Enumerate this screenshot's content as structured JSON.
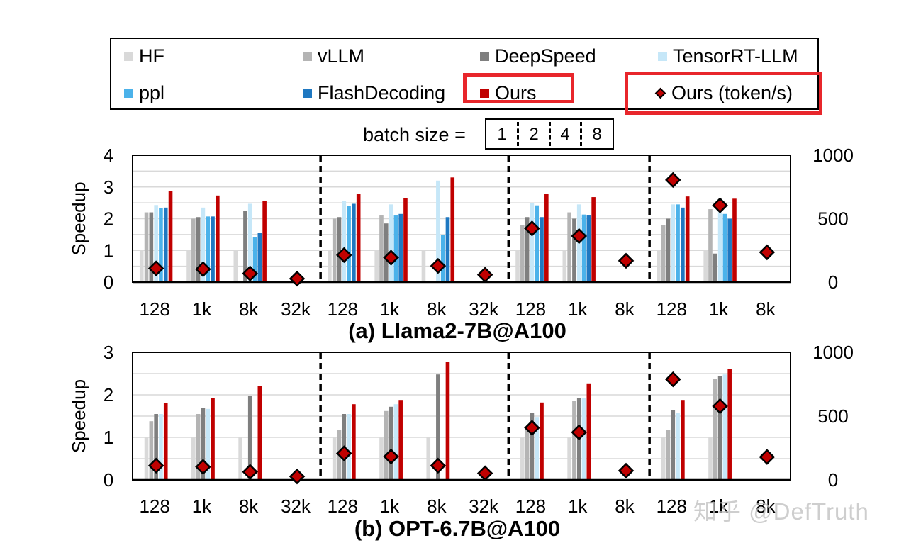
{
  "legend": {
    "items": [
      {
        "label": "HF",
        "color": "#d9d9d9",
        "kind": "bar"
      },
      {
        "label": "vLLM",
        "color": "#b4b4b4",
        "kind": "bar"
      },
      {
        "label": "DeepSpeed",
        "color": "#7f7f7f",
        "kind": "bar"
      },
      {
        "label": "TensorRT-LLM",
        "color": "#c6e7f8",
        "kind": "bar"
      },
      {
        "label": "ppl",
        "color": "#4bb2ea",
        "kind": "bar"
      },
      {
        "label": "FlashDecoding",
        "color": "#1f78c1",
        "kind": "bar"
      },
      {
        "label": "Ours",
        "color": "#c00000",
        "kind": "bar"
      },
      {
        "label": "Ours (token/s)",
        "color": "#c00000",
        "kind": "marker"
      }
    ]
  },
  "batch_size": {
    "label": "batch size =",
    "values": [
      "1",
      "2",
      "4",
      "8"
    ]
  },
  "chart_data": [
    {
      "type": "bar",
      "title": "(a) Llama2-7B@A100",
      "ylabel": "Speedup",
      "ylim": [
        0,
        4
      ],
      "yticks": [
        "0",
        "1",
        "2",
        "3",
        "4"
      ],
      "y2lim": [
        0,
        1000
      ],
      "y2ticks": [
        "0",
        "500",
        "1000"
      ],
      "categories": [
        "128",
        "1k",
        "8k",
        "32k",
        "128",
        "1k",
        "8k",
        "32k",
        "128",
        "1k",
        "8k",
        "128",
        "1k",
        "8k"
      ],
      "groups": [
        4,
        4,
        3,
        3
      ],
      "series": [
        {
          "name": "HF",
          "values": [
            1,
            1,
            1,
            null,
            1,
            1,
            1,
            null,
            1,
            1,
            null,
            1,
            1,
            null
          ]
        },
        {
          "name": "vLLM",
          "values": [
            2.2,
            2.0,
            null,
            null,
            2.0,
            2.1,
            null,
            null,
            1.8,
            2.2,
            null,
            1.8,
            2.3,
            null
          ]
        },
        {
          "name": "DeepSpeed",
          "values": [
            2.2,
            2.05,
            2.25,
            null,
            2.05,
            1.85,
            null,
            null,
            2.05,
            2.0,
            null,
            2.0,
            0.9,
            null
          ]
        },
        {
          "name": "TensorRT-LLM",
          "values": [
            2.43,
            2.35,
            2.47,
            null,
            2.55,
            2.45,
            3.2,
            null,
            2.5,
            2.45,
            null,
            2.45,
            2.2,
            null
          ]
        },
        {
          "name": "ppl",
          "values": [
            2.33,
            2.07,
            1.43,
            null,
            2.4,
            2.1,
            1.48,
            null,
            2.42,
            2.13,
            null,
            2.45,
            2.15,
            null
          ]
        },
        {
          "name": "FlashDecoding",
          "values": [
            2.35,
            2.07,
            1.55,
            null,
            2.47,
            2.15,
            2.05,
            null,
            2.05,
            2.1,
            null,
            2.35,
            2.0,
            null
          ]
        },
        {
          "name": "Ours",
          "values": [
            2.88,
            2.73,
            2.57,
            null,
            2.78,
            2.65,
            3.3,
            null,
            2.78,
            2.68,
            null,
            2.7,
            2.63,
            null
          ]
        },
        {
          "name": "Ours (token/s)",
          "axis": "right",
          "values": [
            108,
            102,
            68,
            27,
            213,
            193,
            128,
            58,
            423,
            363,
            168,
            805,
            605,
            235
          ]
        }
      ]
    },
    {
      "type": "bar",
      "title": "(b) OPT-6.7B@A100",
      "ylabel": "Speedup",
      "ylim": [
        0,
        3
      ],
      "yticks": [
        "0",
        "1",
        "2",
        "3"
      ],
      "y2lim": [
        0,
        1000
      ],
      "y2ticks": [
        "0",
        "500",
        "1000"
      ],
      "categories": [
        "128",
        "1k",
        "8k",
        "32k",
        "128",
        "1k",
        "8k",
        "32k",
        "128",
        "1k",
        "8k",
        "128",
        "1k",
        "8k"
      ],
      "groups": [
        4,
        4,
        3,
        3
      ],
      "series": [
        {
          "name": "HF",
          "values": [
            1,
            1,
            1,
            null,
            1,
            1,
            1,
            null,
            1,
            1,
            null,
            1,
            1,
            null
          ]
        },
        {
          "name": "vLLM",
          "values": [
            1.38,
            1.55,
            null,
            null,
            1.18,
            1.62,
            null,
            null,
            1.18,
            1.85,
            null,
            1.18,
            2.38,
            null
          ]
        },
        {
          "name": "DeepSpeed",
          "values": [
            1.55,
            1.7,
            1.98,
            null,
            1.55,
            1.72,
            2.48,
            null,
            1.58,
            1.93,
            null,
            1.65,
            2.45,
            null
          ]
        },
        {
          "name": "TensorRT-LLM",
          "values": [
            1.55,
            1.67,
            null,
            null,
            1.55,
            1.78,
            null,
            null,
            1.48,
            1.93,
            null,
            1.58,
            2.48,
            null
          ]
        },
        {
          "name": "Ours",
          "values": [
            1.8,
            1.92,
            2.2,
            null,
            1.78,
            1.88,
            2.78,
            null,
            1.82,
            2.27,
            null,
            1.88,
            2.6,
            null
          ]
        },
        {
          "name": "Ours (token/s)",
          "axis": "right",
          "values": [
            112,
            102,
            63,
            27,
            208,
            183,
            112,
            52,
            408,
            373,
            72,
            788,
            578,
            180
          ]
        }
      ]
    }
  ],
  "watermark": "知乎 @DefTruth",
  "partial_next_axis": {
    "left_tick": "3",
    "right_tick": "1000"
  }
}
